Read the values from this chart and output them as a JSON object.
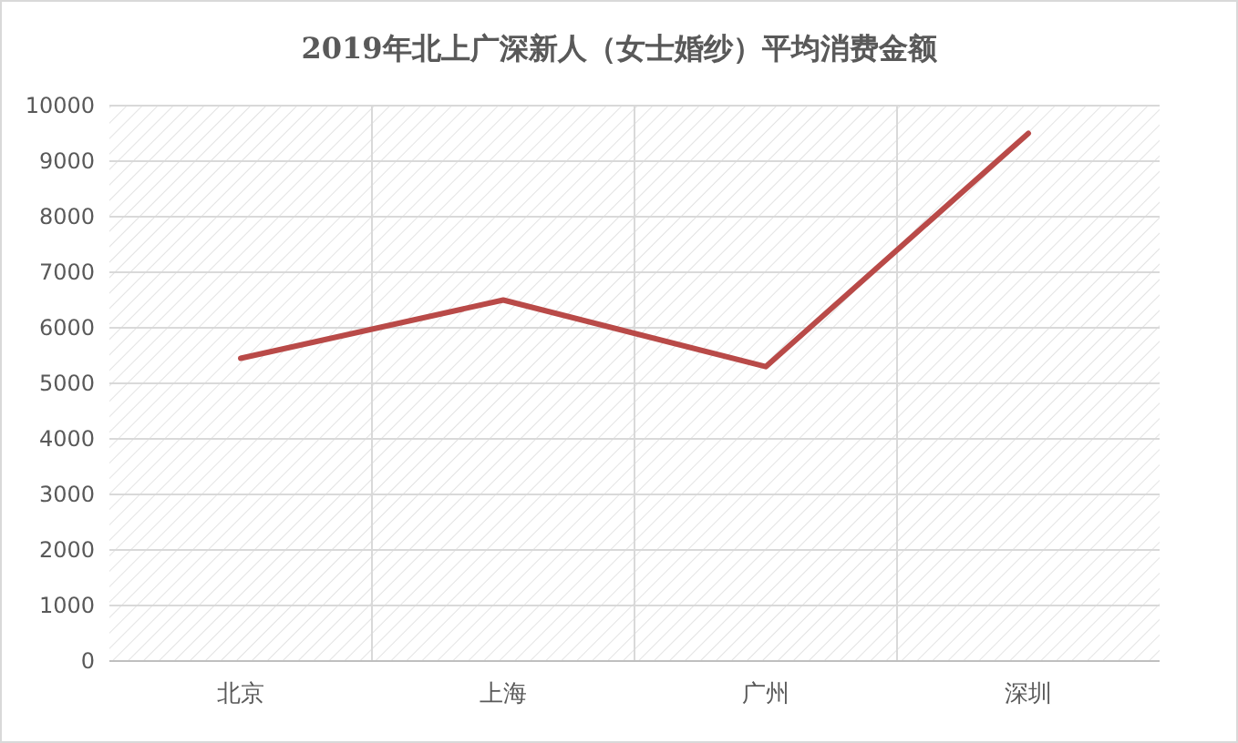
{
  "chart_data": {
    "type": "line",
    "title": "2019年北上广深新人（女士婚纱）平均消费金额",
    "categories": [
      "北京",
      "上海",
      "广州",
      "深圳"
    ],
    "series": [
      {
        "color": "#b94a48",
        "values": [
          5450,
          6500,
          5300,
          9500
        ]
      }
    ],
    "ylim": [
      0,
      10000
    ],
    "yticks": [
      0,
      1000,
      2000,
      3000,
      4000,
      5000,
      6000,
      7000,
      8000,
      9000,
      10000
    ],
    "grid": true,
    "marker": "none",
    "line_style": "solid"
  }
}
